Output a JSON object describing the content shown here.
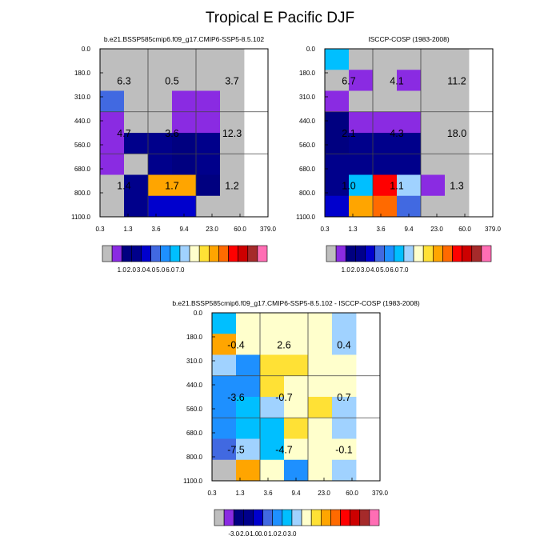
{
  "figure_title": "Tropical E Pacific DJF",
  "palette": [
    "#bebebe",
    "#8a2be2",
    "#000080",
    "#00008b",
    "#0000cd",
    "#4169e1",
    "#1e90ff",
    "#00bfff",
    "#a0d2ff",
    "#ffffcc",
    "#ffe135",
    "#ffa500",
    "#ff6a00",
    "#ff0000",
    "#cd0000",
    "#a52a2a",
    "#ff6eb4"
  ],
  "chart_data": [
    {
      "type": "heatmap",
      "id": "model",
      "title": "b.e21.BSSP585cmip6.f09_g17.CMIP6-SSP5-8.5.102",
      "x_ticks": [
        "0.3",
        "1.3",
        "3.6",
        "9.4",
        "23.0",
        "60.0",
        "379.0"
      ],
      "y_ticks": [
        "0.0",
        "180.0",
        "310.0",
        "440.0",
        "560.0",
        "680.0",
        "800.0",
        "1100.0"
      ],
      "cells": [
        [
          0,
          0,
          5,
          1,
          1,
          1,
          0,
          0
        ],
        [
          0,
          0,
          0,
          0,
          3,
          0,
          3,
          3
        ],
        [
          0,
          0,
          0,
          0,
          3,
          3,
          11,
          4
        ],
        [
          0,
          0,
          1,
          1,
          2,
          2,
          11,
          4
        ],
        [
          0,
          0,
          1,
          1,
          3,
          3,
          2,
          0
        ],
        [
          0,
          0,
          0,
          0,
          0,
          0,
          0,
          0
        ]
      ],
      "labels": [
        [
          "6.3",
          "4.7",
          "1.4"
        ],
        [
          "0.5",
          "3.6",
          "1.7"
        ],
        [
          "3.7",
          "12.3",
          "1.2"
        ]
      ],
      "colorbar_ticks": [
        "1.0",
        "2.0",
        "3.0",
        "4.0",
        "5.0",
        "6.0",
        "7.0"
      ]
    },
    {
      "type": "heatmap",
      "id": "obs",
      "title": "ISCCP-COSP (1983-2008)",
      "x_ticks": [
        "0.3",
        "1.3",
        "3.6",
        "9.4",
        "23.0",
        "60.0",
        "379.0"
      ],
      "y_ticks": [
        "0.0",
        "180.0",
        "310.0",
        "440.0",
        "560.0",
        "680.0",
        "800.0",
        "1100.0"
      ],
      "cells": [
        [
          7,
          0,
          1,
          2,
          2,
          3,
          3,
          4
        ],
        [
          0,
          1,
          0,
          1,
          3,
          3,
          7,
          11
        ],
        [
          0,
          0,
          0,
          1,
          3,
          3,
          13,
          12
        ],
        [
          0,
          1,
          0,
          1,
          3,
          3,
          8,
          5
        ],
        [
          0,
          0,
          0,
          0,
          0,
          0,
          1,
          0
        ],
        [
          0,
          0,
          0,
          0,
          0,
          0,
          0,
          0
        ]
      ],
      "labels": [
        [
          "6.7",
          "2.1",
          "1.0"
        ],
        [
          "4.1",
          "4.3",
          "1.1"
        ],
        [
          "11.2",
          "18.0",
          "1.3"
        ]
      ],
      "colorbar_ticks": [
        "1.0",
        "2.0",
        "3.0",
        "4.0",
        "5.0",
        "6.0",
        "7.0"
      ]
    },
    {
      "type": "heatmap",
      "id": "diff",
      "title": "b.e21.BSSP585cmip6.f09_g17.CMIP6-SSP5-8.5.102 - ISCCP-COSP (1983-2008)",
      "x_ticks": [
        "0.3",
        "1.3",
        "3.6",
        "9.4",
        "23.0",
        "60.0",
        "379.0"
      ],
      "y_ticks": [
        "0.0",
        "180.0",
        "310.0",
        "440.0",
        "560.0",
        "680.0",
        "800.0",
        "1100.0"
      ],
      "cells": [
        [
          7,
          11,
          8,
          6,
          6,
          6,
          5,
          0
        ],
        [
          9,
          9,
          6,
          6,
          7,
          7,
          8,
          11
        ],
        [
          9,
          9,
          10,
          10,
          8,
          7,
          7,
          9
        ],
        [
          9,
          9,
          10,
          9,
          9,
          10,
          9,
          6
        ],
        [
          9,
          9,
          9,
          9,
          10,
          9,
          9,
          9
        ],
        [
          8,
          8,
          9,
          9,
          8,
          8,
          9,
          8
        ]
      ],
      "labels": [
        [
          "-0.4",
          "-3.6",
          "-7.5"
        ],
        [
          "2.6",
          "-0.7",
          "-4.7"
        ],
        [
          "0.4",
          "0.7",
          "-0.1"
        ]
      ],
      "colorbar_ticks": [
        "-3.0",
        "-2.0",
        "-1.0",
        "0.0",
        "1.0",
        "2.0",
        "3.0"
      ]
    }
  ]
}
